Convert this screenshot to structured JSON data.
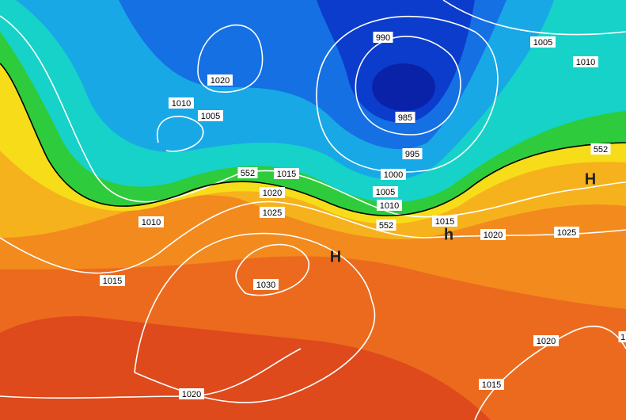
{
  "map": {
    "labels": [
      "990",
      "1005",
      "1010",
      "1020",
      "1010",
      "1005",
      "985",
      "995",
      "552",
      "552",
      "1015",
      "1020",
      "1000",
      "1005",
      "1010",
      "1025",
      "1010",
      "552",
      "1015",
      "h",
      "H",
      "1020",
      "1025",
      "H",
      "1015",
      "1030",
      "1020",
      "1015",
      "1020",
      "1"
    ]
  }
}
